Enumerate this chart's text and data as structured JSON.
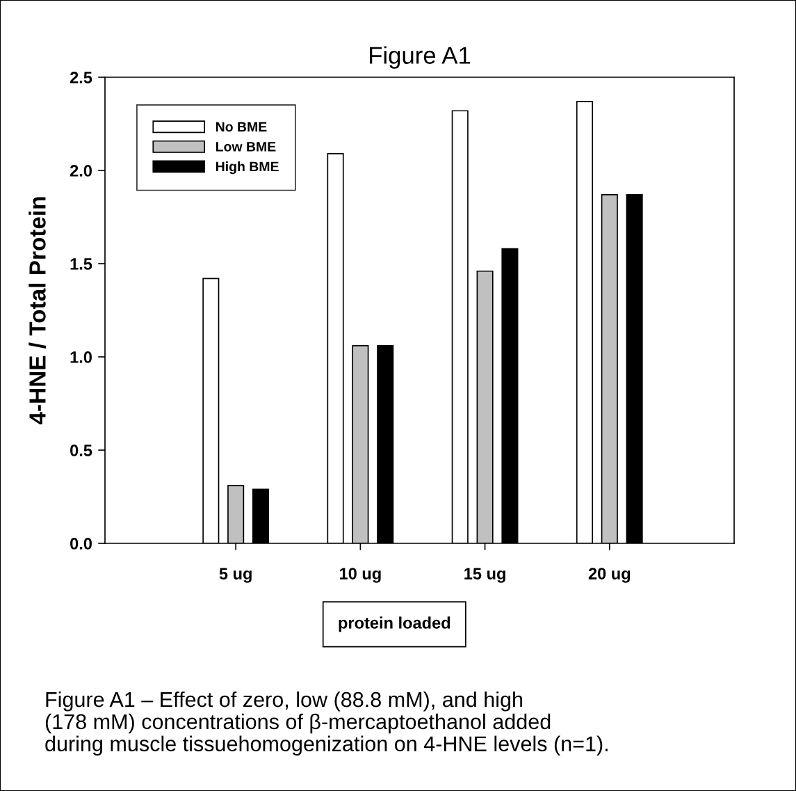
{
  "chart_data": {
    "type": "bar",
    "title": "Figure A1",
    "xlabel": "protein loaded",
    "ylabel": "4-HNE / Total Protein",
    "categories": [
      "5 ug",
      "10 ug",
      "15 ug",
      "20 ug"
    ],
    "series": [
      {
        "name": "No BME",
        "color": "#ffffff",
        "values": [
          1.42,
          2.09,
          2.32,
          2.37
        ]
      },
      {
        "name": "Low BME",
        "color": "#c0c0c0",
        "values": [
          0.31,
          1.06,
          1.46,
          1.87
        ]
      },
      {
        "name": "High BME",
        "color": "#000000",
        "values": [
          0.29,
          1.06,
          1.58,
          1.87
        ]
      }
    ],
    "ylim": [
      0,
      2.5
    ],
    "yticks": [
      {
        "value": 0,
        "label": "0.0"
      },
      {
        "value": 0.5,
        "label": "0.5"
      },
      {
        "value": 1,
        "label": "1.0"
      },
      {
        "value": 1.5,
        "label": "1.5"
      },
      {
        "value": 2,
        "label": "2.0"
      },
      {
        "value": 2.5,
        "label": "2.5"
      }
    ],
    "grid": false,
    "legend": "top left",
    "annotations": [
      "Figure A1 – Effect of zero, low (88.8 mM), and high\n(178 mM) concentrations of β-mercaptoethanol added\nduring muscle tissuehomogenization on 4-HNE levels (n=1)."
    ]
  }
}
